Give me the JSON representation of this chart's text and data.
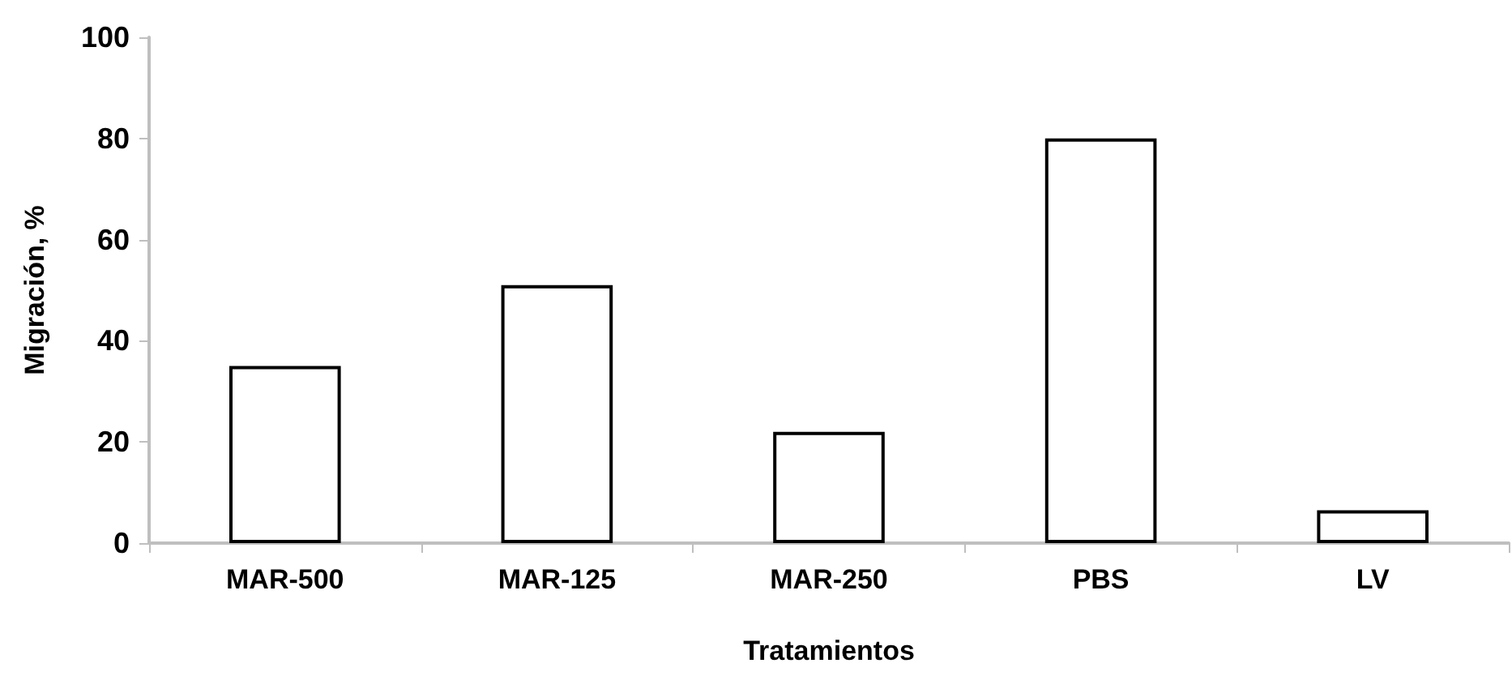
{
  "chart_data": {
    "type": "bar",
    "xlabel": "Tratamientos",
    "ylabel": "Migración, %",
    "categories": [
      "MAR-500",
      "MAR-125",
      "MAR-250",
      "PBS",
      "LV"
    ],
    "values": [
      35,
      51,
      22,
      80,
      6.5
    ],
    "color": "#ffffff",
    "ylim": [
      0,
      100
    ],
    "yticks": [
      0,
      20,
      40,
      60,
      80,
      100
    ],
    "grid": false
  }
}
